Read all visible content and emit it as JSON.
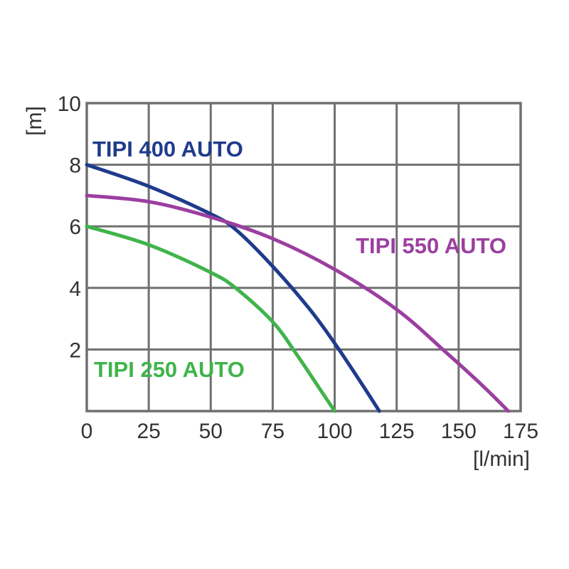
{
  "chart_data": {
    "type": "line",
    "title": "",
    "xlabel": "[l/min]",
    "ylabel": "[m]",
    "xlim": [
      0,
      175
    ],
    "ylim": [
      0,
      10
    ],
    "x_ticks": [
      0,
      25,
      50,
      75,
      100,
      125,
      150,
      175
    ],
    "y_ticks": [
      2,
      4,
      6,
      8,
      10
    ],
    "grid": true,
    "series": [
      {
        "name": "TIPI 400 AUTO",
        "color": "#1f3b8c",
        "x": [
          0,
          25,
          50,
          60,
          75,
          90,
          100,
          110,
          118
        ],
        "y": [
          8.0,
          7.3,
          6.4,
          5.9,
          4.7,
          3.3,
          2.2,
          1.0,
          0.0
        ]
      },
      {
        "name": "TIPI 550 AUTO",
        "color": "#9b3fa0",
        "x": [
          0,
          25,
          50,
          75,
          100,
          125,
          145,
          160,
          170
        ],
        "y": [
          7.0,
          6.8,
          6.3,
          5.6,
          4.6,
          3.3,
          1.9,
          0.8,
          0.0
        ]
      },
      {
        "name": "TIPI 250 AUTO",
        "color": "#3fb44a",
        "x": [
          0,
          25,
          50,
          60,
          75,
          85,
          95,
          100
        ],
        "y": [
          6.0,
          5.4,
          4.5,
          4.0,
          2.9,
          1.8,
          0.6,
          0.0
        ]
      }
    ]
  }
}
